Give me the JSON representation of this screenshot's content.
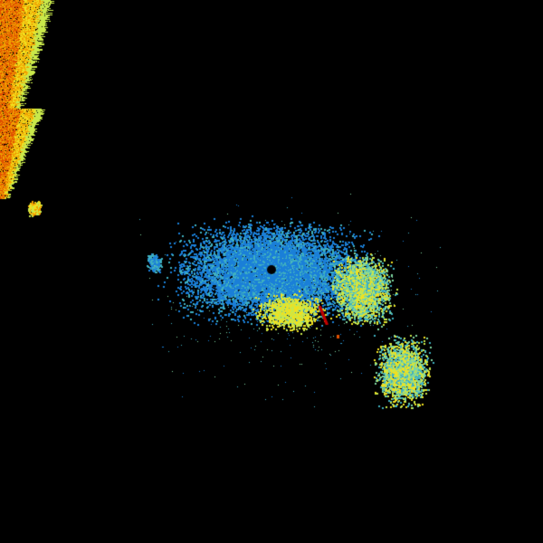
{
  "radar": {
    "background": "#000000",
    "palette": {
      "light_green": "#7fd6a0",
      "teal": "#3fb0c0",
      "blue": "#1a7fd8",
      "yellow_green": "#c8e84a",
      "yellow": "#f0e020",
      "orange": "#f0a000",
      "red_orange": "#e05000",
      "red": "#c00000"
    }
  }
}
